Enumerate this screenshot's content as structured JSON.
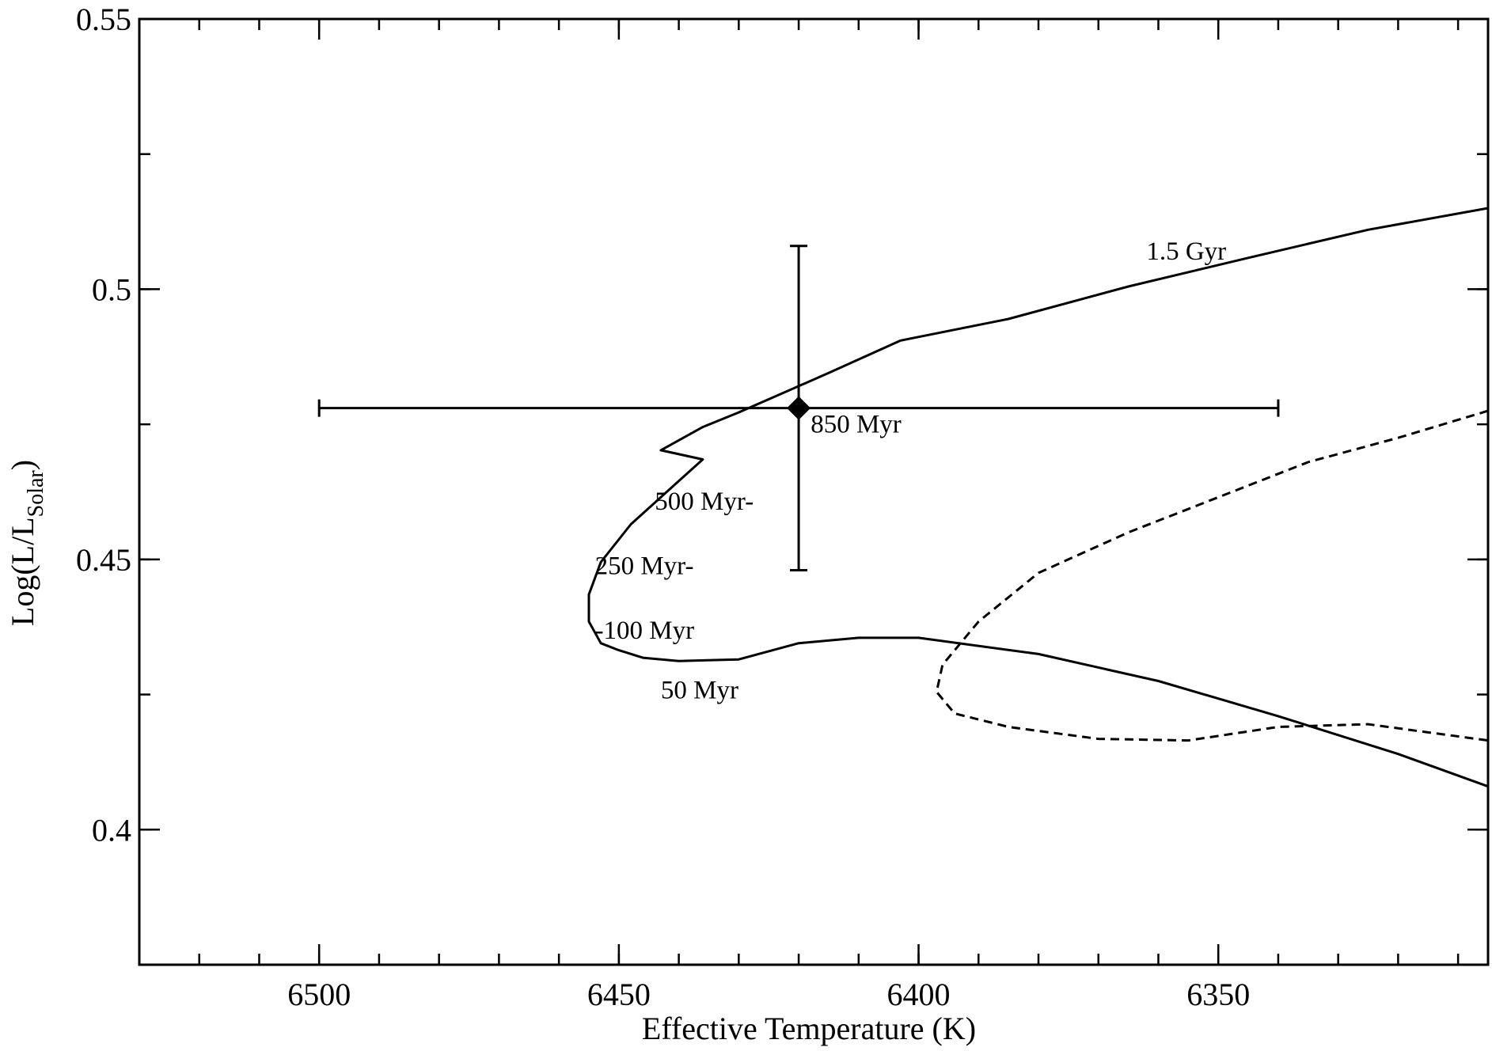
{
  "chart_data": {
    "type": "line",
    "xlabel": "Effective Temperature (K)",
    "ylabel": {
      "main": "Log(L/L",
      "sub": "Solar",
      "close": ")"
    },
    "x_reversed": true,
    "xlim": [
      6530,
      6305
    ],
    "ylim": [
      0.375,
      0.55
    ],
    "x_ticks": [
      6500,
      6450,
      6400,
      6350
    ],
    "x_tick_labels": [
      "6500",
      "6450",
      "6400",
      "6350"
    ],
    "x_minor_step": 10,
    "y_ticks": [
      0.4,
      0.45,
      0.5,
      0.55
    ],
    "y_tick_labels": [
      "0.4",
      "0.45",
      "0.5",
      "0.55"
    ],
    "y_minor_step": 0.025,
    "grid": false,
    "series": [
      {
        "style": "solid",
        "x": [
          6305,
          6320,
          6340,
          6360,
          6380,
          6400,
          6410,
          6420,
          6430,
          6440,
          6446,
          6450,
          6453,
          6455,
          6455,
          6453,
          6448,
          6440,
          6436,
          6443,
          6436,
          6430,
          6415,
          6403,
          6385,
          6365,
          6345,
          6325,
          6305
        ],
        "y": [
          0.408,
          0.414,
          0.421,
          0.4275,
          0.4325,
          0.4355,
          0.4355,
          0.4345,
          0.4315,
          0.4312,
          0.4318,
          0.4332,
          0.4345,
          0.4385,
          0.4435,
          0.4495,
          0.4565,
          0.4645,
          0.4685,
          0.4702,
          0.4745,
          0.4772,
          0.4845,
          0.4905,
          0.4945,
          0.5005,
          0.5058,
          0.511,
          0.515
        ]
      },
      {
        "style": "dashed",
        "x": [
          6305,
          6320,
          6335,
          6350,
          6365,
          6380,
          6390,
          6396,
          6397,
          6394,
          6385,
          6370,
          6355,
          6340,
          6325,
          6305
        ],
        "y": [
          0.4775,
          0.4725,
          0.468,
          0.4615,
          0.455,
          0.4475,
          0.4385,
          0.4305,
          0.4255,
          0.4215,
          0.419,
          0.4168,
          0.4165,
          0.419,
          0.4195,
          0.4165
        ]
      }
    ],
    "measurement": {
      "x": 6420,
      "y": 0.478,
      "xerr": 80,
      "yerr_low": 0.03,
      "yerr_high": 0.03,
      "marker": "diamond"
    },
    "annotations": [
      {
        "text": "1.5 Gyr",
        "x": 6362,
        "y": 0.5055
      },
      {
        "text": "850 Myr",
        "x": 6418,
        "y": 0.4735
      },
      {
        "text": "500 Myr-",
        "x": 6444,
        "y": 0.4592
      },
      {
        "text": "250 Myr-",
        "x": 6454,
        "y": 0.4473
      },
      {
        "text": "-100 Myr",
        "x": 6454,
        "y": 0.4353
      },
      {
        "text": "50 Myr",
        "x": 6443,
        "y": 0.4243
      }
    ]
  }
}
